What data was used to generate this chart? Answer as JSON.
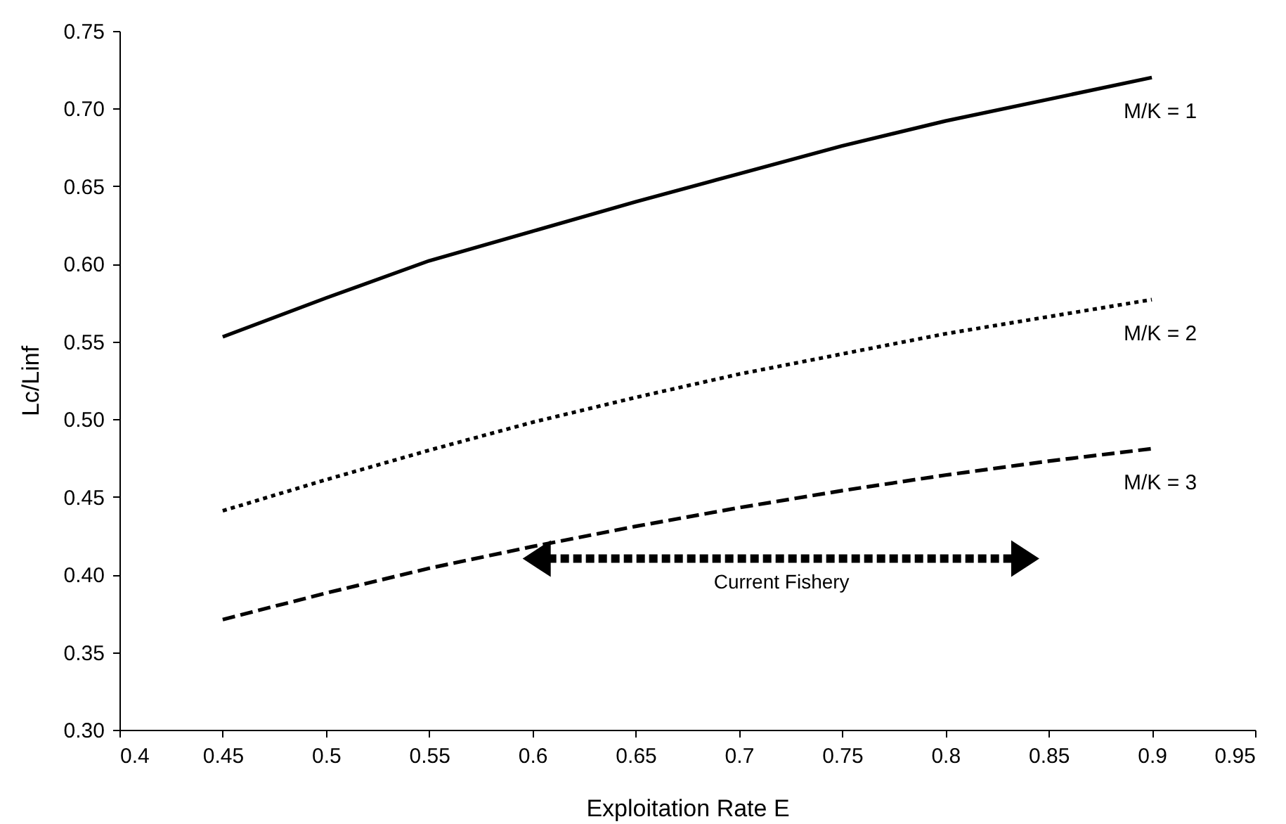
{
  "chart_data": {
    "type": "line",
    "xlabel": "Exploitation Rate E",
    "ylabel": "Lc/Linf",
    "x": [
      0.45,
      0.5,
      0.55,
      0.6,
      0.65,
      0.7,
      0.75,
      0.8,
      0.85,
      0.9
    ],
    "series": [
      {
        "name": "M/K = 1",
        "color": "#000000",
        "line_style": "solid",
        "values": [
          0.553,
          0.578,
          0.602,
          0.621,
          0.64,
          0.658,
          0.676,
          0.692,
          0.706,
          0.72
        ]
      },
      {
        "name": "M/K = 2",
        "color": "#000000",
        "line_style": "dotted",
        "values": [
          0.441,
          0.461,
          0.48,
          0.498,
          0.514,
          0.529,
          0.542,
          0.555,
          0.566,
          0.577
        ]
      },
      {
        "name": "M/K = 3",
        "color": "#000000",
        "line_style": "dashed",
        "values": [
          0.371,
          0.388,
          0.404,
          0.418,
          0.431,
          0.443,
          0.454,
          0.464,
          0.473,
          0.481
        ]
      }
    ],
    "xlim": [
      0.4,
      0.95
    ],
    "xticks": [
      0.4,
      0.45,
      0.5,
      0.55,
      0.6,
      0.65,
      0.7,
      0.75,
      0.8,
      0.85,
      0.9,
      0.95
    ],
    "ylim": [
      0.3,
      0.75
    ],
    "yticks": [
      {
        "value": 0.3,
        "label": "0.30"
      },
      {
        "value": 0.35,
        "label": "0.35"
      },
      {
        "value": 0.4,
        "label": "0.40"
      },
      {
        "value": 0.45,
        "label": "0.45"
      },
      {
        "value": 0.5,
        "label": "0.50"
      },
      {
        "value": 0.55,
        "label": "0.55"
      },
      {
        "value": 0.6,
        "label": "0.60"
      },
      {
        "value": 0.65,
        "label": "0.65"
      },
      {
        "value": 0.7,
        "label": "0.70"
      },
      {
        "value": 0.75,
        "label": "0.75"
      }
    ],
    "annotations": [
      "Current Fishery"
    ],
    "grid": false,
    "marker": "none"
  }
}
